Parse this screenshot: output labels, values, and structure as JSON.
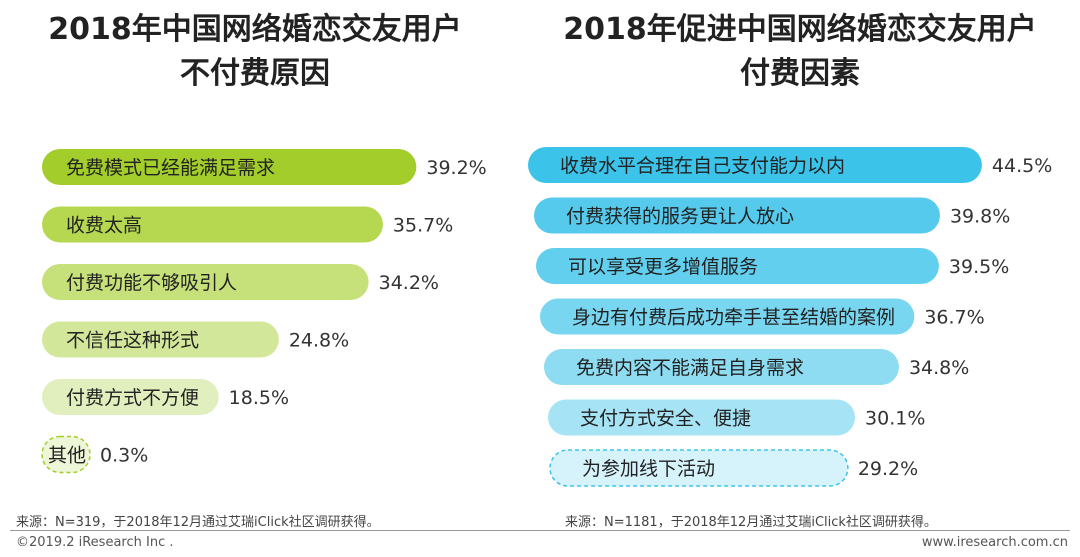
{
  "left_title": {
    "line1": "2018年中国网络婚恋交友用户",
    "line2": "不付费原因"
  },
  "right_title": {
    "line1": "2018年促进中国网络婚恋交友用户",
    "line2": "付费因素"
  },
  "chart_data": [
    {
      "type": "bar",
      "orientation": "horizontal",
      "title": "2018年中国网络婚恋交友用户不付费原因",
      "categories": [
        "免费模式已经能满足需求",
        "收费太高",
        "付费功能不够吸引人",
        "不信任这种形式",
        "付费方式不方便",
        "其他"
      ],
      "values": [
        39.2,
        35.7,
        34.2,
        24.8,
        18.5,
        0.3
      ],
      "value_labels": [
        "39.2%",
        "35.7%",
        "34.2%",
        "24.8%",
        "18.5%",
        "0.3%"
      ],
      "colors": [
        "#a3cd2b",
        "#b6d851",
        "#c6e07a",
        "#d3e79b",
        "#e1efbe",
        "#eef6d8"
      ],
      "unit": "%"
    },
    {
      "type": "bar",
      "orientation": "horizontal",
      "title": "2018年促进中国网络婚恋交友用户付费因素",
      "categories": [
        "收费水平合理在自己支付能力以内",
        "付费获得的服务更让人放心",
        "可以享受更多增值服务",
        "身边有付费后成功牵手甚至结婚的案例",
        "免费内容不能满足自身需求",
        "支付方式安全、便捷",
        "为参加线下活动"
      ],
      "values": [
        44.5,
        39.8,
        39.5,
        36.7,
        34.8,
        30.1,
        29.2
      ],
      "value_labels": [
        "44.5%",
        "39.8%",
        "39.5%",
        "36.7%",
        "34.8%",
        "30.1%",
        "29.2%"
      ],
      "colors": [
        "#3cc3ea",
        "#55caed",
        "#62cfee",
        "#79d6f0",
        "#8ddcf2",
        "#a6e4f5",
        "#d6f3fb"
      ],
      "unit": "%"
    }
  ],
  "source_left": "来源：N=319，于2018年12月通过艾瑞iClick社区调研获得。",
  "source_right": "来源：N=1181，于2018年12月通过艾瑞iClick社区调研获得。",
  "footer_left": "©2019.2 iResearch Inc .",
  "footer_right": "www.iresearch.com.cn"
}
